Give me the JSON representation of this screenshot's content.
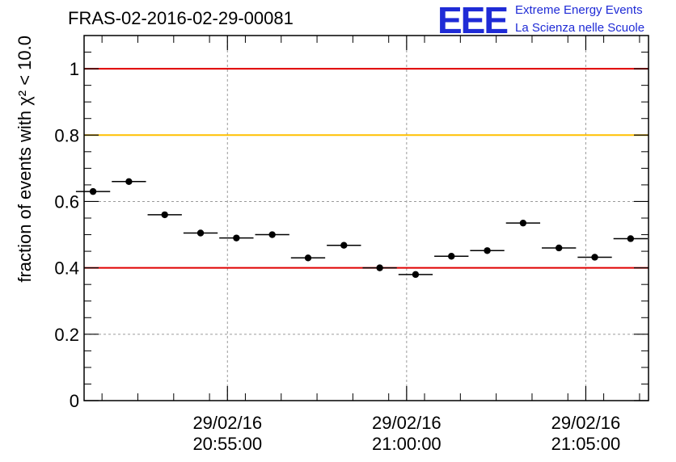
{
  "title": "FRAS-02-2016-02-29-00081",
  "logo": {
    "mark": "EEE",
    "line1": "Extreme Energy Events",
    "line2": "La Scienza nelle Scuole"
  },
  "chart_data": {
    "type": "scatter",
    "title": "FRAS-02-2016-02-29-00081",
    "ylabel": "fraction of events with χ² < 10.0",
    "xlabel": "",
    "ylim": [
      0,
      1.1
    ],
    "xlim": [
      "29/02/16 20:51:00",
      "29/02/16 21:06:45"
    ],
    "grid": true,
    "yticks": [
      "0",
      "0.2",
      "0.4",
      "0.6",
      "0.8",
      "1"
    ],
    "xticks": [
      {
        "date": "29/02/16",
        "time": "20:55:00"
      },
      {
        "date": "29/02/16",
        "time": "21:00:00"
      },
      {
        "date": "29/02/16",
        "time": "21:05:00"
      }
    ],
    "reference_lines": [
      {
        "y": 1.0,
        "color": "#e00000"
      },
      {
        "y": 0.8,
        "color": "#ffc000"
      },
      {
        "y": 0.4,
        "color": "#e00000"
      }
    ],
    "points": [
      {
        "x": "20:51:15",
        "y": 0.63
      },
      {
        "x": "20:52:15",
        "y": 0.66
      },
      {
        "x": "20:53:15",
        "y": 0.56
      },
      {
        "x": "20:54:15",
        "y": 0.505
      },
      {
        "x": "20:55:15",
        "y": 0.49
      },
      {
        "x": "20:56:15",
        "y": 0.5
      },
      {
        "x": "20:57:15",
        "y": 0.43
      },
      {
        "x": "20:58:15",
        "y": 0.468
      },
      {
        "x": "20:59:15",
        "y": 0.4
      },
      {
        "x": "21:00:15",
        "y": 0.38
      },
      {
        "x": "21:01:15",
        "y": 0.435
      },
      {
        "x": "21:02:15",
        "y": 0.452
      },
      {
        "x": "21:03:15",
        "y": 0.535
      },
      {
        "x": "21:04:15",
        "y": 0.46
      },
      {
        "x": "21:05:15",
        "y": 0.432
      },
      {
        "x": "21:06:15",
        "y": 0.488
      }
    ],
    "bin_width_seconds": 60
  }
}
